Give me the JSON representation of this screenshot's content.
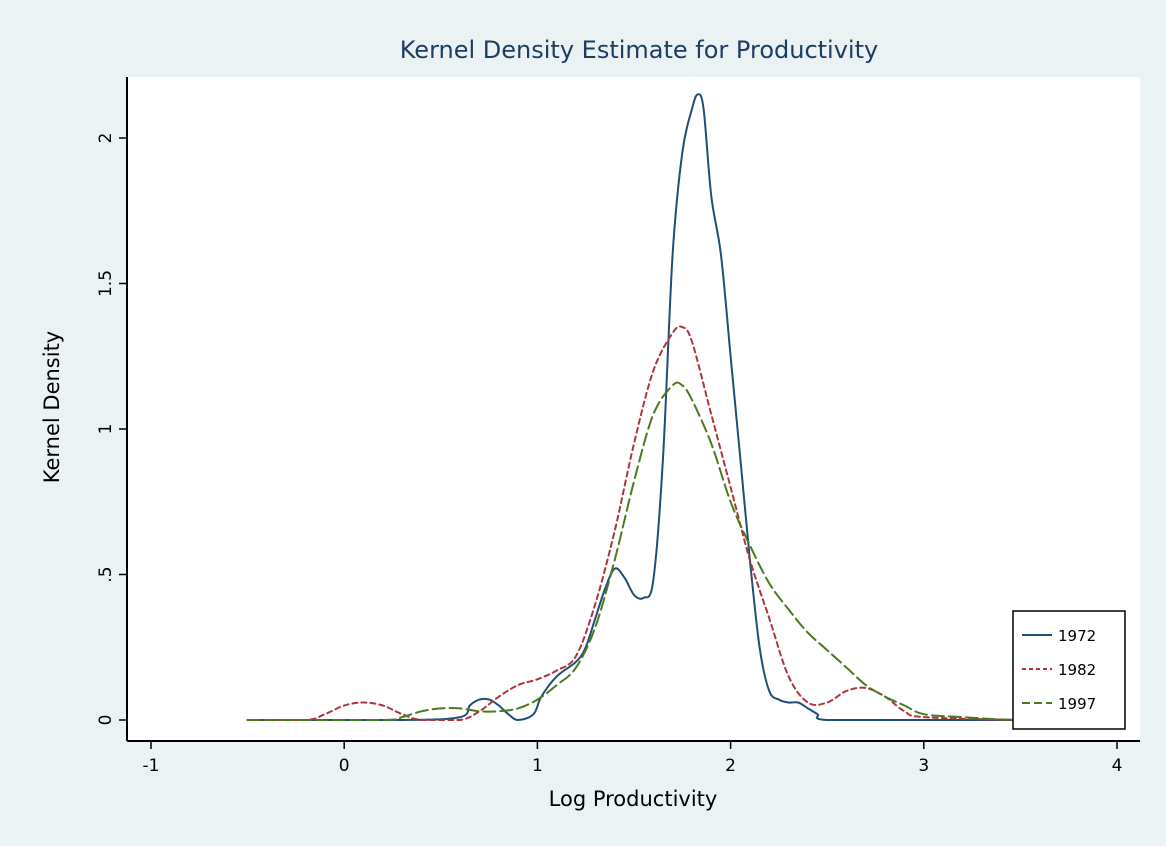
{
  "chart_data": {
    "type": "line",
    "title": "Kernel Density Estimate for Productivity",
    "xlabel": "Log Productivity",
    "ylabel": "Kernel Density",
    "xlim": [
      -1,
      4
    ],
    "ylim": [
      0,
      2.2
    ],
    "xticks": [
      -1,
      0,
      1,
      2,
      3,
      4
    ],
    "xtick_labels": [
      "-1",
      "0",
      "1",
      "2",
      "3",
      "4"
    ],
    "yticks": [
      0,
      0.5,
      1,
      1.5,
      2
    ],
    "ytick_labels": [
      "0",
      ".5",
      "1",
      "1.5",
      "2"
    ],
    "grid": false,
    "legend_position": "bottom-right",
    "colors": {
      "page_background": "#eaf2f3",
      "plot_background": "#ffffff",
      "title": "#1d3d63",
      "axis": "#000000"
    },
    "series": [
      {
        "name": "1972",
        "color": "#1f4e79",
        "dash": "solid",
        "x": [
          -0.5,
          0.3,
          0.6,
          0.65,
          0.7,
          0.75,
          0.8,
          0.85,
          0.9,
          0.98,
          1.02,
          1.1,
          1.2,
          1.25,
          1.3,
          1.35,
          1.4,
          1.45,
          1.5,
          1.55,
          1.6,
          1.65,
          1.7,
          1.75,
          1.8,
          1.83,
          1.86,
          1.9,
          1.95,
          2.0,
          2.05,
          2.1,
          2.15,
          2.2,
          2.25,
          2.3,
          2.35,
          2.4,
          2.45,
          2.5,
          3.0,
          3.5,
          4.0
        ],
        "y": [
          0,
          0,
          0.01,
          0.05,
          0.07,
          0.07,
          0.05,
          0.02,
          0,
          0.02,
          0.08,
          0.15,
          0.2,
          0.25,
          0.35,
          0.45,
          0.52,
          0.49,
          0.43,
          0.42,
          0.48,
          0.9,
          1.6,
          1.95,
          2.1,
          2.15,
          2.1,
          1.8,
          1.6,
          1.25,
          0.9,
          0.55,
          0.25,
          0.1,
          0.07,
          0.06,
          0.06,
          0.04,
          0.02,
          0,
          0,
          0,
          0
        ]
      },
      {
        "name": "1982",
        "color": "#b0343c",
        "dash": "short-dash",
        "x": [
          -0.5,
          -0.2,
          -0.1,
          0.0,
          0.1,
          0.2,
          0.3,
          0.4,
          0.6,
          0.7,
          0.8,
          0.9,
          1.0,
          1.1,
          1.2,
          1.3,
          1.4,
          1.5,
          1.6,
          1.7,
          1.75,
          1.8,
          1.9,
          2.0,
          2.1,
          2.2,
          2.3,
          2.4,
          2.5,
          2.6,
          2.7,
          2.8,
          2.9,
          3.0,
          3.5,
          4.0
        ],
        "y": [
          0,
          0,
          0.02,
          0.05,
          0.06,
          0.05,
          0.02,
          0,
          0,
          0.03,
          0.08,
          0.12,
          0.14,
          0.17,
          0.22,
          0.4,
          0.65,
          0.95,
          1.2,
          1.33,
          1.35,
          1.3,
          1.05,
          0.8,
          0.55,
          0.35,
          0.15,
          0.06,
          0.06,
          0.1,
          0.11,
          0.08,
          0.03,
          0.01,
          0,
          0
        ]
      },
      {
        "name": "1997",
        "color": "#4b7a1e",
        "dash": "long-dash",
        "x": [
          -0.5,
          0.2,
          0.3,
          0.4,
          0.5,
          0.6,
          0.7,
          0.8,
          0.9,
          1.0,
          1.1,
          1.2,
          1.3,
          1.4,
          1.5,
          1.6,
          1.7,
          1.75,
          1.8,
          1.9,
          2.0,
          2.1,
          2.2,
          2.3,
          2.4,
          2.5,
          2.6,
          2.7,
          2.8,
          2.9,
          3.0,
          3.2,
          3.5,
          4.0
        ],
        "y": [
          0,
          0,
          0.01,
          0.03,
          0.04,
          0.04,
          0.03,
          0.03,
          0.04,
          0.07,
          0.12,
          0.18,
          0.32,
          0.55,
          0.82,
          1.05,
          1.15,
          1.15,
          1.1,
          0.95,
          0.75,
          0.6,
          0.47,
          0.38,
          0.3,
          0.24,
          0.18,
          0.12,
          0.08,
          0.05,
          0.02,
          0.01,
          0,
          0
        ]
      }
    ]
  }
}
